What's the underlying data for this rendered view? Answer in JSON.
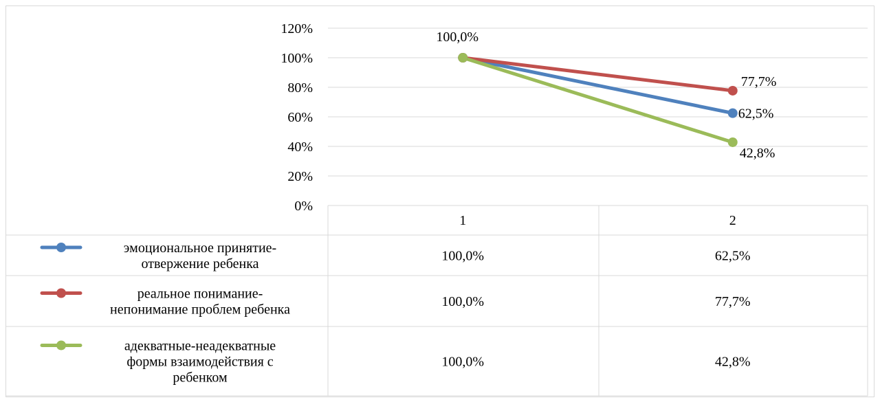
{
  "chart_data": {
    "type": "line",
    "title": "",
    "xlabel": "",
    "ylabel": "",
    "categories": [
      "1",
      "2"
    ],
    "y_ticks": [
      "0%",
      "20%",
      "40%",
      "60%",
      "80%",
      "100%",
      "120%"
    ],
    "ylim": [
      0,
      120
    ],
    "grid": true,
    "legend_placement": "data-table",
    "series": [
      {
        "name": "эмоциональное принятие-отвержение ребенка",
        "legend_lines": [
          "эмоциональное принятие-",
          "отвержение ребенка"
        ],
        "values": [
          100.0,
          62.5
        ],
        "labels": [
          "100,0%",
          "62,5%"
        ],
        "color": "#4f81bd"
      },
      {
        "name": "реальное понимание-непонимание проблем ребенка",
        "legend_lines": [
          "реальное понимание-",
          "непонимание проблем ребенка"
        ],
        "values": [
          100.0,
          77.7
        ],
        "labels": [
          "100,0%",
          "77,7%"
        ],
        "color": "#c0504d"
      },
      {
        "name": "адекватные-неадекватные формы взаимодействия с ребенком",
        "legend_lines": [
          "адекватные-неадекватные",
          "формы взаимодействия с",
          "ребенком"
        ],
        "values": [
          100.0,
          42.8
        ],
        "labels": [
          "100,0%",
          "42,8%"
        ],
        "color": "#9bbb59"
      }
    ],
    "point_labels_shown": [
      {
        "series": 2,
        "point": 0,
        "text": "100,0%"
      },
      {
        "series": 1,
        "point": 1,
        "text": "77,7%"
      },
      {
        "series": 0,
        "point": 1,
        "text": "62,5%"
      },
      {
        "series": 2,
        "point": 1,
        "text": "42,8%"
      }
    ]
  }
}
